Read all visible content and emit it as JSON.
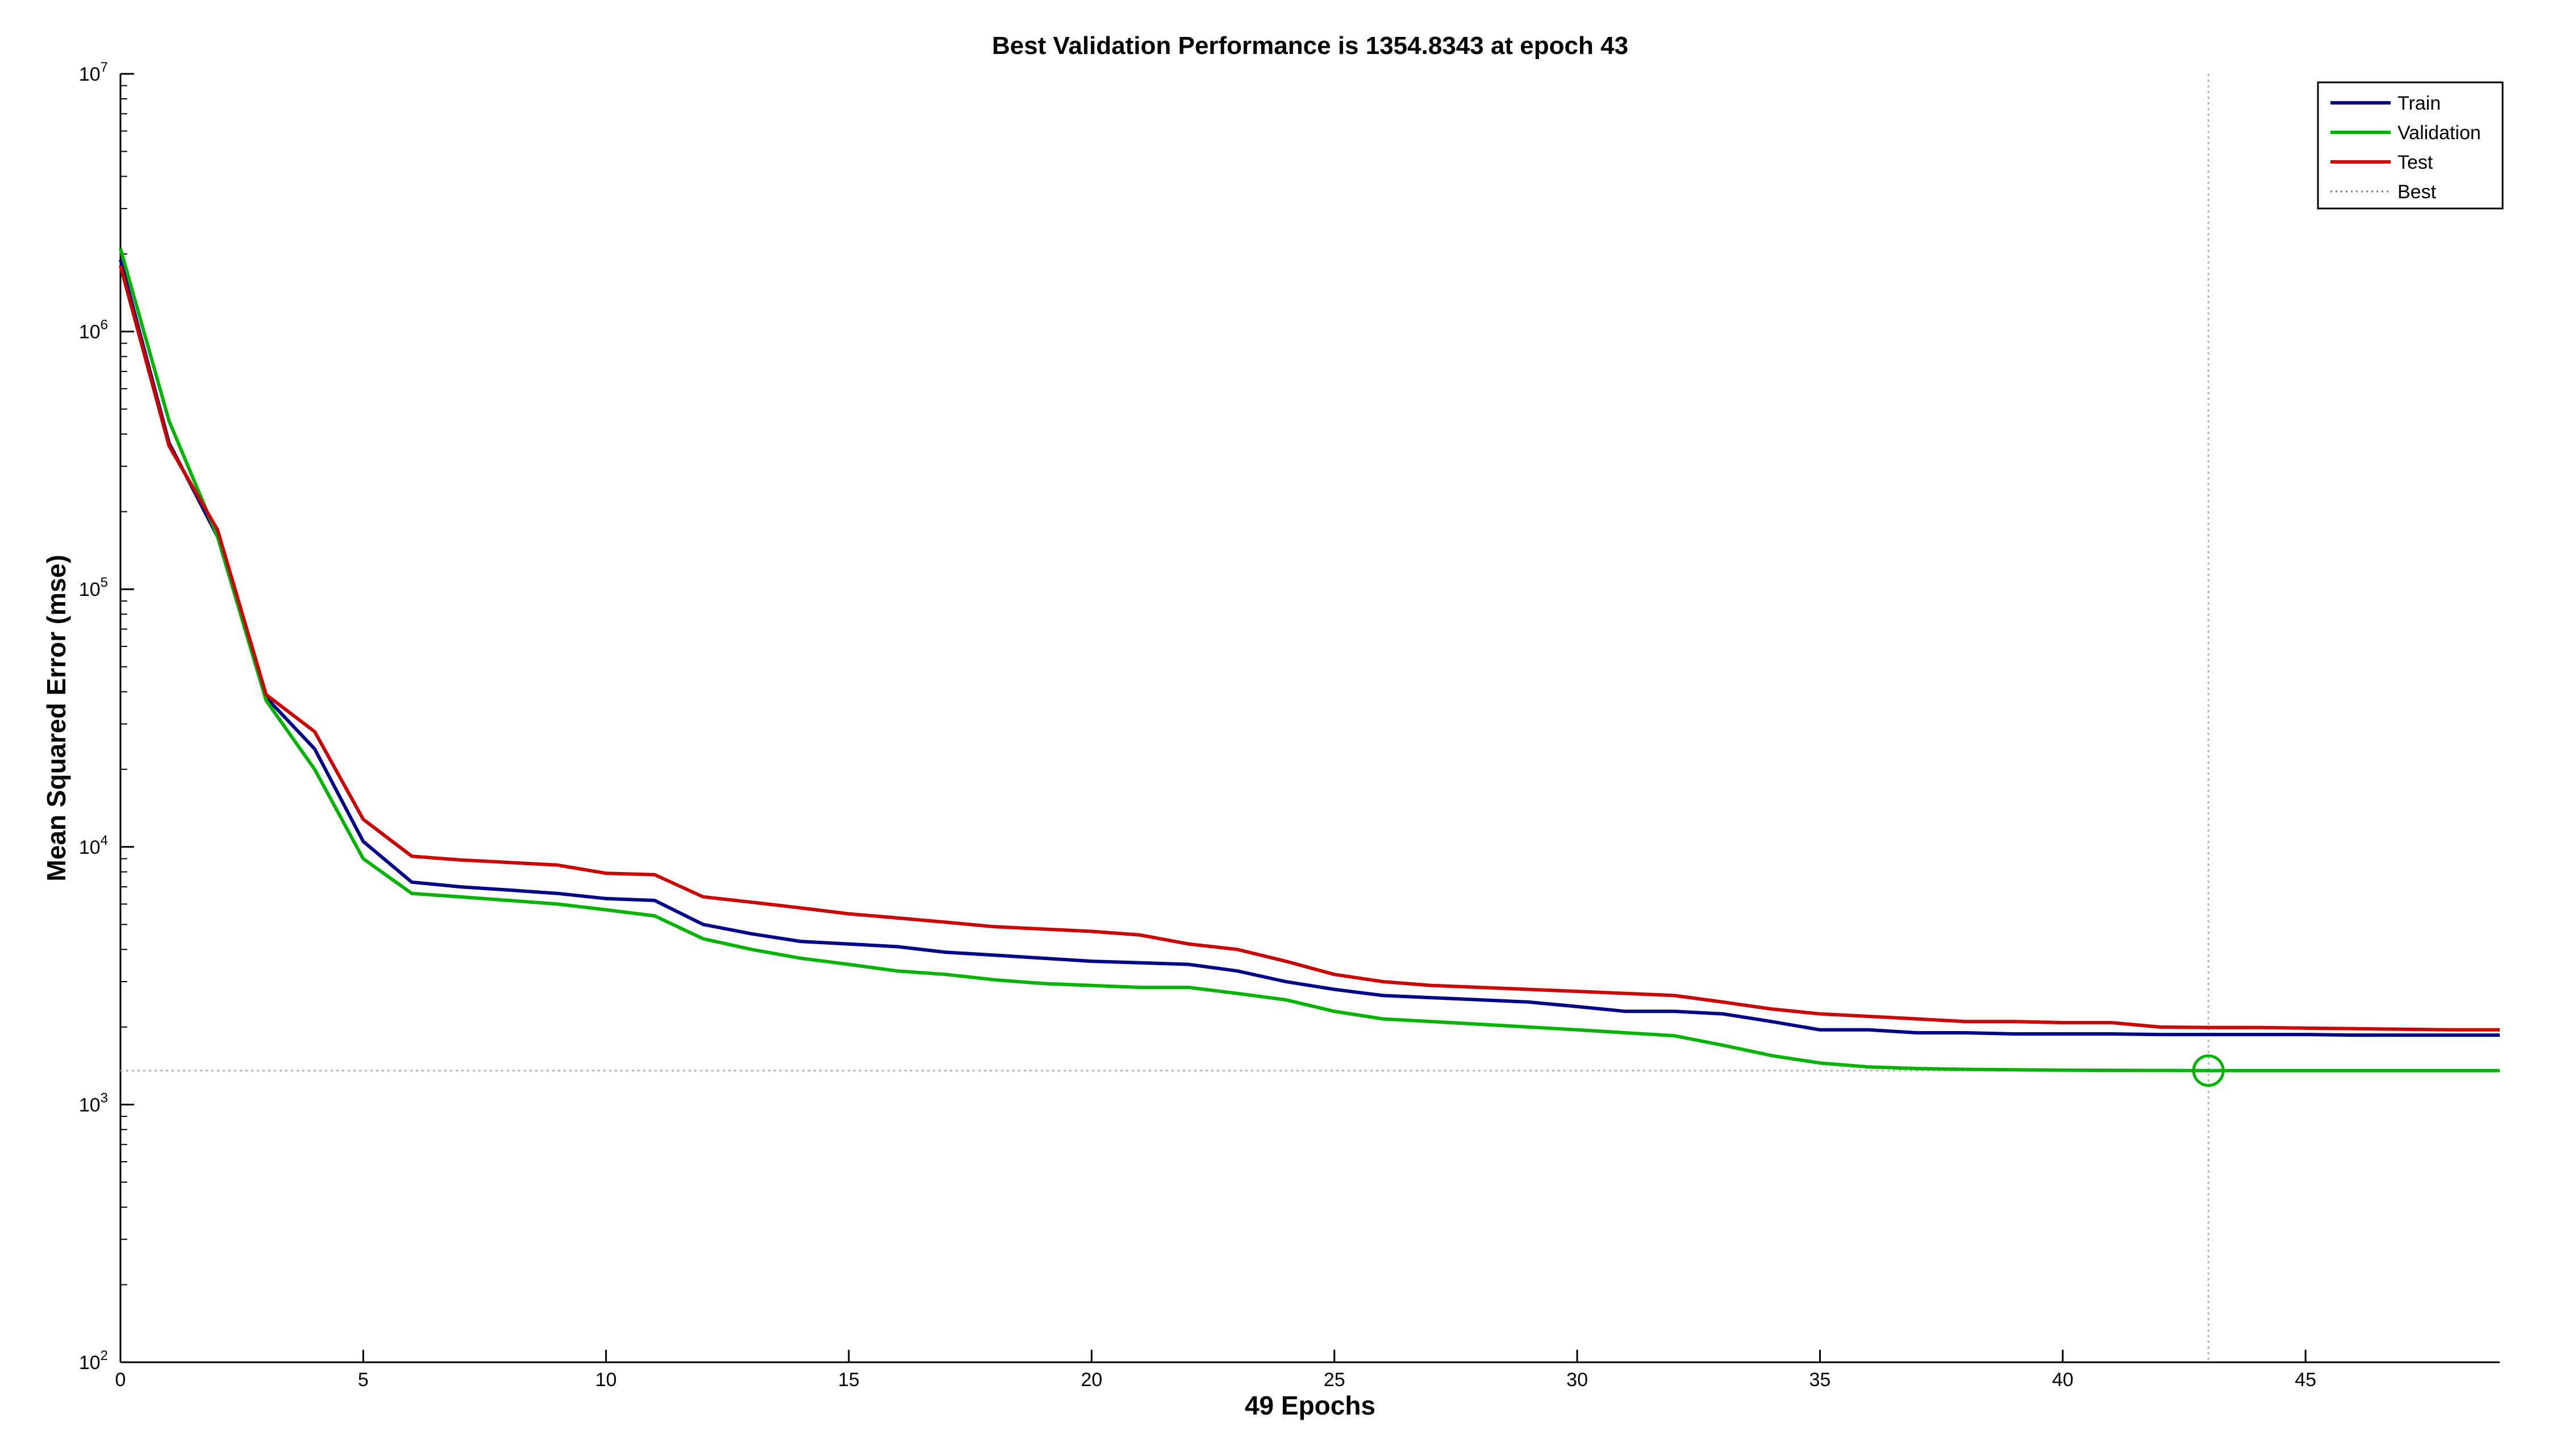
{
  "chart_data": {
    "type": "line",
    "title": "Best Validation Performance is 1354.8343 at epoch 43",
    "xlabel": "49 Epochs",
    "ylabel": "Mean Squared Error  (mse)",
    "xlim": [
      0,
      49
    ],
    "ylim": [
      100,
      10000000
    ],
    "yscale": "log",
    "xticks": [
      0,
      5,
      10,
      15,
      20,
      25,
      30,
      35,
      40,
      45
    ],
    "yticks": [
      {
        "base": "10",
        "exp": "2",
        "value": 100
      },
      {
        "base": "10",
        "exp": "3",
        "value": 1000
      },
      {
        "base": "10",
        "exp": "4",
        "value": 10000
      },
      {
        "base": "10",
        "exp": "5",
        "value": 100000
      },
      {
        "base": "10",
        "exp": "6",
        "value": 1000000
      },
      {
        "base": "10",
        "exp": "7",
        "value": 10000000
      }
    ],
    "grid": false,
    "legend_position": "top-right",
    "x": [
      0,
      1,
      2,
      3,
      4,
      5,
      6,
      7,
      8,
      9,
      10,
      11,
      12,
      13,
      14,
      15,
      16,
      17,
      18,
      19,
      20,
      21,
      22,
      23,
      24,
      25,
      26,
      27,
      28,
      29,
      30,
      31,
      32,
      33,
      34,
      35,
      36,
      37,
      38,
      39,
      40,
      41,
      42,
      43,
      44,
      45,
      46,
      47,
      48,
      49
    ],
    "series": [
      {
        "name": "Train",
        "color": "#00008b",
        "values": [
          1900000,
          370000,
          160000,
          38000,
          24000,
          10500,
          7300,
          7000,
          6800,
          6600,
          6300,
          6200,
          5000,
          4600,
          4300,
          4200,
          4100,
          3900,
          3800,
          3700,
          3600,
          3550,
          3500,
          3300,
          3000,
          2800,
          2650,
          2600,
          2550,
          2500,
          2400,
          2300,
          2300,
          2250,
          2100,
          1950,
          1950,
          1900,
          1900,
          1880,
          1880,
          1880,
          1870,
          1870,
          1870,
          1870,
          1860,
          1860,
          1860,
          1860
        ]
      },
      {
        "name": "Validation",
        "color": "#00b400",
        "values": [
          2100000,
          450000,
          160000,
          37000,
          20000,
          9000,
          6600,
          6400,
          6200,
          6000,
          5700,
          5400,
          4400,
          4000,
          3700,
          3500,
          3300,
          3200,
          3050,
          2950,
          2900,
          2850,
          2850,
          2700,
          2550,
          2300,
          2150,
          2100,
          2050,
          2000,
          1950,
          1900,
          1850,
          1700,
          1550,
          1450,
          1400,
          1380,
          1370,
          1365,
          1360,
          1358,
          1356,
          1354.8343,
          1355,
          1355,
          1355,
          1355,
          1355,
          1355
        ]
      },
      {
        "name": "Test",
        "color": "#cc0000",
        "values": [
          1800000,
          360000,
          170000,
          39000,
          28000,
          12800,
          9200,
          8900,
          8700,
          8500,
          7900,
          7800,
          6400,
          6100,
          5800,
          5500,
          5300,
          5100,
          4900,
          4800,
          4700,
          4550,
          4200,
          4000,
          3600,
          3200,
          3000,
          2900,
          2850,
          2800,
          2750,
          2700,
          2650,
          2500,
          2350,
          2250,
          2200,
          2150,
          2100,
          2100,
          2080,
          2080,
          2000,
          1990,
          1990,
          1980,
          1970,
          1960,
          1950,
          1950
        ]
      }
    ],
    "best": {
      "name": "Best",
      "epoch": 43,
      "value": 1354.8343,
      "color": "#b4b4b4"
    }
  }
}
